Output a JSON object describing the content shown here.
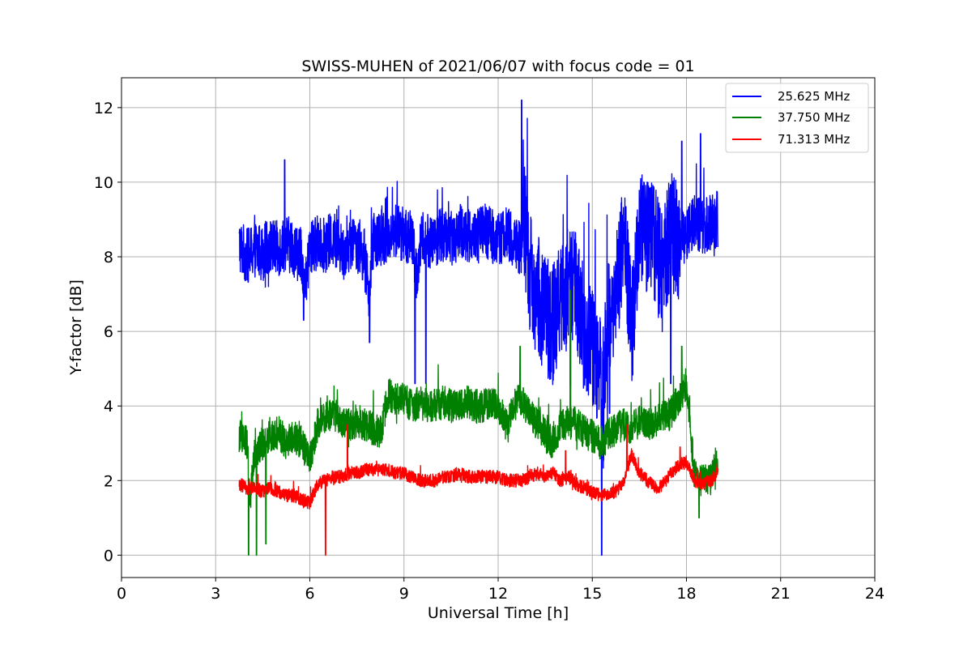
{
  "chart_data": {
    "type": "line",
    "title": "SWISS-MUHEN of 2021/06/07 with focus code = 01",
    "xlabel": "Universal Time [h]",
    "ylabel": "Y-factor [dB]",
    "xlim": [
      0,
      24
    ],
    "ylim": [
      -0.6,
      12.8
    ],
    "xticks": [
      0,
      3,
      6,
      9,
      12,
      15,
      18,
      21,
      24
    ],
    "xtick_labels": [
      "0",
      "3",
      "6",
      "9",
      "12",
      "15",
      "18",
      "21",
      "24"
    ],
    "yticks": [
      0,
      2,
      4,
      6,
      8,
      10,
      12
    ],
    "ytick_labels": [
      "0",
      "2",
      "4",
      "6",
      "8",
      "10",
      "12"
    ],
    "grid": true,
    "legend_position": "top-right",
    "series": [
      {
        "name": "25.625 MHz",
        "color": "#0000ff",
        "x": [
          3.75,
          4.0,
          4.25,
          4.5,
          4.75,
          5.0,
          5.25,
          5.5,
          5.75,
          5.85,
          6.0,
          6.25,
          6.5,
          6.75,
          7.0,
          7.25,
          7.5,
          7.75,
          7.9,
          8.0,
          8.25,
          8.5,
          8.75,
          9.0,
          9.25,
          9.4,
          9.6,
          9.75,
          10.0,
          10.25,
          10.5,
          10.75,
          11.0,
          11.25,
          11.5,
          11.75,
          12.0,
          12.25,
          12.5,
          12.75,
          12.8,
          13.0,
          13.25,
          13.5,
          13.75,
          14.0,
          14.25,
          14.5,
          14.75,
          15.0,
          15.25,
          15.35,
          15.5,
          15.75,
          16.0,
          16.25,
          16.5,
          16.75,
          17.0,
          17.25,
          17.5,
          17.75,
          18.0,
          18.25,
          18.5,
          18.75,
          19.0
        ],
        "y": [
          8.3,
          8.0,
          8.2,
          8.1,
          8.3,
          8.2,
          8.4,
          8.2,
          8.0,
          7.0,
          8.2,
          8.4,
          8.3,
          8.5,
          8.2,
          8.3,
          8.4,
          8.0,
          6.8,
          8.4,
          8.5,
          8.6,
          8.7,
          8.6,
          8.5,
          7.5,
          8.6,
          8.4,
          8.5,
          8.6,
          8.5,
          8.7,
          8.6,
          8.5,
          8.7,
          8.6,
          8.5,
          8.6,
          8.4,
          8.2,
          9.5,
          7.5,
          7.0,
          6.5,
          6.2,
          6.8,
          7.2,
          7.0,
          6.0,
          5.5,
          5.0,
          3.8,
          6.5,
          7.0,
          8.5,
          6.0,
          8.8,
          8.6,
          8.4,
          7.5,
          8.8,
          8.4,
          8.6,
          9.0,
          8.8,
          8.9,
          9.0
        ],
        "spikes": [
          [
            5.2,
            10.6
          ],
          [
            5.8,
            6.3
          ],
          [
            7.9,
            5.7
          ],
          [
            9.35,
            4.6
          ],
          [
            9.7,
            4.6
          ],
          [
            12.75,
            12.2
          ],
          [
            14.3,
            4.5
          ],
          [
            15.3,
            0.0
          ],
          [
            15.55,
            3.8
          ],
          [
            17.5,
            4.6
          ],
          [
            17.85,
            11.1
          ],
          [
            18.45,
            11.3
          ]
        ]
      },
      {
        "name": "37.750 MHz",
        "color": "#008000",
        "x": [
          3.75,
          4.0,
          4.1,
          4.25,
          4.5,
          4.75,
          5.0,
          5.25,
          5.5,
          5.75,
          6.0,
          6.25,
          6.5,
          6.75,
          7.0,
          7.25,
          7.5,
          7.75,
          8.0,
          8.25,
          8.5,
          8.75,
          9.0,
          9.25,
          9.5,
          9.75,
          10.0,
          10.25,
          10.5,
          10.75,
          11.0,
          11.25,
          11.5,
          11.75,
          12.0,
          12.25,
          12.5,
          12.75,
          13.0,
          13.25,
          13.5,
          13.75,
          14.0,
          14.25,
          14.5,
          14.75,
          15.0,
          15.25,
          15.5,
          15.75,
          16.0,
          16.25,
          16.5,
          16.75,
          17.0,
          17.25,
          17.5,
          17.75,
          18.0,
          18.25,
          18.5,
          18.75,
          19.0
        ],
        "y": [
          3.2,
          3.0,
          1.5,
          2.8,
          3.0,
          3.2,
          3.3,
          3.0,
          3.2,
          3.0,
          2.5,
          3.5,
          3.7,
          3.8,
          3.6,
          3.5,
          3.6,
          3.5,
          3.4,
          3.3,
          4.3,
          4.2,
          4.2,
          4.0,
          4.1,
          4.0,
          4.0,
          4.1,
          4.0,
          4.0,
          4.1,
          4.0,
          4.0,
          4.1,
          4.0,
          3.5,
          4.0,
          4.2,
          3.8,
          3.5,
          3.2,
          3.0,
          3.4,
          3.6,
          3.5,
          3.3,
          3.2,
          3.0,
          3.2,
          3.4,
          3.5,
          3.4,
          3.6,
          3.5,
          3.6,
          3.7,
          3.8,
          4.2,
          4.6,
          2.2,
          2.0,
          2.0,
          2.5
        ],
        "spikes": [
          [
            4.05,
            0.0
          ],
          [
            4.3,
            0.0
          ],
          [
            4.6,
            0.3
          ],
          [
            12.7,
            5.6
          ],
          [
            14.3,
            7.1
          ],
          [
            17.85,
            5.6
          ],
          [
            18.4,
            1.0
          ]
        ]
      },
      {
        "name": "71.313 MHz",
        "color": "#ff0000",
        "x": [
          3.75,
          4.0,
          4.25,
          4.5,
          4.75,
          5.0,
          5.25,
          5.5,
          5.75,
          6.0,
          6.25,
          6.5,
          6.75,
          7.0,
          7.25,
          7.5,
          7.75,
          8.0,
          8.25,
          8.5,
          8.75,
          9.0,
          9.25,
          9.5,
          9.75,
          10.0,
          10.25,
          10.5,
          10.75,
          11.0,
          11.25,
          11.5,
          11.75,
          12.0,
          12.25,
          12.5,
          12.75,
          13.0,
          13.25,
          13.5,
          13.75,
          14.0,
          14.25,
          14.5,
          14.75,
          15.0,
          15.25,
          15.5,
          15.75,
          16.0,
          16.25,
          16.5,
          16.75,
          17.0,
          17.25,
          17.5,
          17.75,
          18.0,
          18.25,
          18.5,
          18.75,
          19.0
        ],
        "y": [
          1.9,
          1.8,
          1.8,
          1.7,
          1.8,
          1.7,
          1.6,
          1.6,
          1.5,
          1.4,
          1.9,
          2.0,
          2.1,
          2.1,
          2.2,
          2.2,
          2.3,
          2.3,
          2.3,
          2.3,
          2.2,
          2.2,
          2.1,
          2.0,
          2.0,
          2.0,
          2.1,
          2.1,
          2.2,
          2.1,
          2.1,
          2.1,
          2.1,
          2.1,
          2.0,
          2.0,
          2.0,
          2.1,
          2.2,
          2.1,
          2.2,
          2.0,
          2.1,
          1.9,
          1.8,
          1.7,
          1.6,
          1.6,
          1.7,
          2.0,
          2.7,
          2.2,
          2.0,
          1.8,
          1.9,
          2.2,
          2.4,
          2.5,
          2.0,
          1.9,
          2.0,
          2.2
        ],
        "spikes": [
          [
            6.5,
            0.0
          ],
          [
            7.2,
            3.5
          ],
          [
            14.15,
            2.8
          ],
          [
            16.1,
            3.5
          ],
          [
            17.8,
            2.9
          ]
        ]
      }
    ]
  }
}
